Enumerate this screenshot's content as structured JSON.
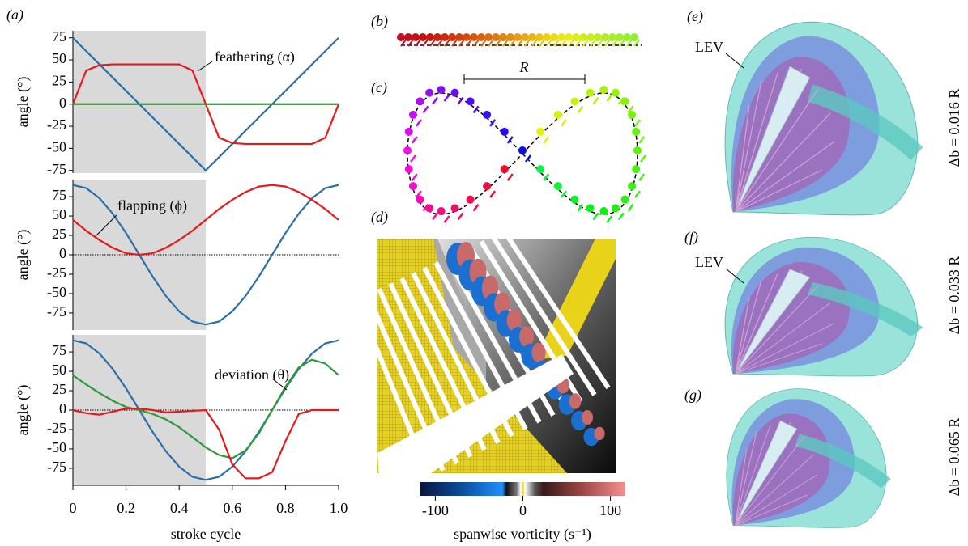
{
  "chart_data": [
    {
      "type": "line",
      "panel_label": "(a)",
      "ylabel": "angle (°)",
      "annotation": "feathering (α)",
      "x": [
        0,
        0.05,
        0.1,
        0.15,
        0.2,
        0.25,
        0.3,
        0.35,
        0.4,
        0.45,
        0.5,
        0.55,
        0.6,
        0.65,
        0.7,
        0.75,
        0.8,
        0.85,
        0.9,
        0.95,
        1
      ],
      "xlim": [
        0,
        1
      ],
      "ylim": [
        -78,
        83
      ],
      "yticks": [
        75,
        50,
        25,
        0,
        -25,
        -50,
        -75
      ],
      "shaded_region": [
        0,
        0.5
      ],
      "series": [
        {
          "color": "#2b6fa8",
          "values": [
            75,
            60,
            45,
            30,
            15,
            0,
            -15,
            -30,
            -45,
            -60,
            -75,
            -60,
            -45,
            -30,
            -15,
            0,
            15,
            30,
            45,
            60,
            75
          ]
        },
        {
          "color": "#e8191c",
          "values": [
            0,
            38,
            44,
            45,
            45,
            45,
            45,
            45,
            45,
            38,
            0,
            -38,
            -44,
            -45,
            -45,
            -45,
            -45,
            -45,
            -45,
            -38,
            0
          ]
        },
        {
          "color": "#2e9a3a",
          "values": [
            0,
            0,
            0,
            0,
            0,
            0,
            0,
            0,
            0,
            0,
            0,
            0,
            0,
            0,
            0,
            0,
            0,
            0,
            0,
            0,
            0
          ]
        }
      ]
    },
    {
      "type": "line",
      "ylabel": "angle (°)",
      "annotation": "flapping (ϕ)",
      "zero_line": true,
      "x": [
        0,
        0.05,
        0.1,
        0.15,
        0.2,
        0.25,
        0.3,
        0.35,
        0.4,
        0.45,
        0.5,
        0.55,
        0.6,
        0.65,
        0.7,
        0.75,
        0.8,
        0.85,
        0.9,
        0.95,
        1
      ],
      "xlim": [
        0,
        1
      ],
      "ylim": [
        -97,
        97
      ],
      "yticks": [
        75,
        50,
        25,
        0,
        -25,
        -50,
        -75
      ],
      "shaded_region": [
        0,
        0.5
      ],
      "series": [
        {
          "color": "#2b6fa8",
          "values": [
            90,
            86,
            73,
            53,
            28,
            0,
            -28,
            -53,
            -73,
            -86,
            -90,
            -86,
            -73,
            -53,
            -28,
            0,
            28,
            53,
            73,
            86,
            90
          ]
        },
        {
          "color": "#e8191c",
          "values": [
            45,
            31,
            19,
            9,
            2,
            0,
            2,
            9,
            19,
            31,
            45,
            59,
            71,
            81,
            88,
            90,
            88,
            81,
            71,
            59,
            45
          ]
        }
      ]
    },
    {
      "type": "line",
      "ylabel": "angle (°)",
      "annotation": "deviation (θ)",
      "zero_line": true,
      "xlabel": "stroke cycle",
      "x": [
        0,
        0.05,
        0.1,
        0.15,
        0.2,
        0.25,
        0.3,
        0.35,
        0.4,
        0.45,
        0.5,
        0.55,
        0.6,
        0.65,
        0.7,
        0.75,
        0.8,
        0.85,
        0.9,
        0.95,
        1
      ],
      "xlim": [
        0,
        1
      ],
      "ylim": [
        -97,
        97
      ],
      "yticks": [
        75,
        50,
        25,
        0,
        -25,
        -50,
        -75
      ],
      "shaded_region": [
        0,
        0.5
      ],
      "xticks": [
        0,
        0.2,
        0.4,
        0.6,
        0.8,
        {
          "value": 1,
          "label": "1.0"
        }
      ],
      "series": [
        {
          "color": "#2b6fa8",
          "values": [
            90,
            86,
            73,
            53,
            28,
            0,
            -28,
            -53,
            -73,
            -86,
            -90,
            -86,
            -73,
            -53,
            -28,
            0,
            28,
            53,
            73,
            86,
            90
          ]
        },
        {
          "color": "#2e9a3a",
          "values": [
            45,
            33,
            22,
            12,
            4,
            0,
            -5,
            -12,
            -22,
            -35,
            -48,
            -58,
            -62,
            -52,
            -30,
            0,
            30,
            55,
            65,
            60,
            45
          ]
        },
        {
          "color": "#e8191c",
          "values": [
            0,
            -4,
            -6,
            -2,
            2,
            2,
            0,
            -3,
            -2,
            -1,
            0,
            -25,
            -70,
            -88,
            -88,
            -80,
            -40,
            -5,
            0,
            0,
            0
          ]
        }
      ]
    }
  ],
  "panels": {
    "b": {
      "label": "(b)"
    },
    "c": {
      "label": "(c)",
      "scale_label": "R"
    },
    "d": {
      "label": "(d)",
      "colorbar": {
        "lim": [
          -117,
          117
        ],
        "ticks": [
          -100,
          0,
          100
        ],
        "label": "spanwise vorticity (s⁻¹)"
      }
    },
    "e": {
      "label": "(e)",
      "annotation": "LEV",
      "caption": "Δb = 0.016 R"
    },
    "f": {
      "label": "(f)",
      "annotation": "LEV",
      "caption": "Δb = 0.033 R"
    },
    "g": {
      "label": "(g)",
      "caption": "Δb = 0.065 R"
    }
  }
}
